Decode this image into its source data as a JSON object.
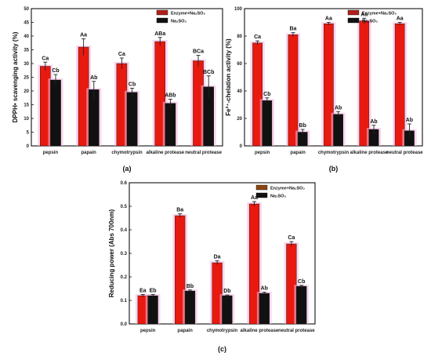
{
  "colors": {
    "series_1": "#e8190f",
    "series_2": "#111111",
    "glow": "#f6b6e0",
    "error_bar": "#222222"
  },
  "chart_data": [
    {
      "type": "bar",
      "panel_label": "(a)",
      "ylabel": "DPPH• scavenging activity (%)",
      "categories": [
        "pepsin",
        "papain",
        "chymotrypsin",
        "alkaline protease",
        "neutral protease"
      ],
      "ylim": [
        0,
        50
      ],
      "yticks": [
        0,
        5,
        10,
        15,
        20,
        25,
        30,
        35,
        40,
        45,
        50
      ],
      "series": [
        {
          "name": "Enzyme+Na₂SO₃",
          "values": [
            29,
            36,
            30,
            38,
            31
          ],
          "errors": [
            1.5,
            3,
            2,
            1.5,
            2
          ],
          "labels": [
            "Ca",
            "Aa",
            "Ca",
            "ABa",
            "BCa"
          ]
        },
        {
          "name": "Na₂SO₃",
          "values": [
            24,
            20.5,
            19.5,
            15.5,
            21.5
          ],
          "errors": [
            2,
            3,
            1.5,
            1.5,
            4
          ],
          "labels": [
            "Cb",
            "Ab",
            "Cb",
            "ABb",
            "BCb"
          ]
        }
      ],
      "legend": "top-right"
    },
    {
      "type": "bar",
      "panel_label": "(b)",
      "ylabel": "Fe²⁺-chelation activity (%)",
      "categories": [
        "pepsin",
        "papain",
        "chymotrypsin",
        "alkaline protease",
        "neutral protease"
      ],
      "ylim": [
        0,
        100
      ],
      "yticks": [
        0,
        20,
        40,
        60,
        80,
        100
      ],
      "series": [
        {
          "name": "Enzyme+Na₂SO₃",
          "values": [
            75,
            81,
            89,
            91,
            89
          ],
          "errors": [
            1.5,
            1.5,
            1,
            2,
            1
          ],
          "labels": [
            "Ca",
            "Ba",
            "Aa",
            "Aa",
            "Aa"
          ]
        },
        {
          "name": "Na₂SO₃",
          "values": [
            33,
            10,
            23,
            12,
            11
          ],
          "errors": [
            2,
            2,
            2,
            3,
            5
          ],
          "labels": [
            "Cb",
            "Bb",
            "Ab",
            "Ab",
            "Ab"
          ]
        }
      ],
      "legend": "top-right"
    },
    {
      "type": "bar",
      "panel_label": "(c)",
      "ylabel": "Reducing power (Abs 700nm)",
      "categories": [
        "pepsin",
        "papain",
        "chymotrypsin",
        "alkaline protease",
        "neutral protease"
      ],
      "ylim": [
        0,
        0.6
      ],
      "yticks": [
        0.0,
        0.1,
        0.2,
        0.3,
        0.4,
        0.5,
        0.6
      ],
      "series": [
        {
          "name": "Enzyme+Na₂SO₃",
          "values": [
            0.12,
            0.46,
            0.26,
            0.51,
            0.34
          ],
          "errors": [
            0.005,
            0.008,
            0.008,
            0.01,
            0.01
          ],
          "labels": [
            "Ea",
            "Ba",
            "Da",
            "Aa",
            "Ca"
          ]
        },
        {
          "name": "Na₂SO₃",
          "values": [
            0.12,
            0.14,
            0.12,
            0.13,
            0.16
          ],
          "errors": [
            0.005,
            0.004,
            0.003,
            0.005,
            0.004
          ],
          "labels": [
            "Eb",
            "Bb",
            "Db",
            "Ab",
            "Cb"
          ]
        }
      ],
      "legend": "top-right"
    }
  ]
}
